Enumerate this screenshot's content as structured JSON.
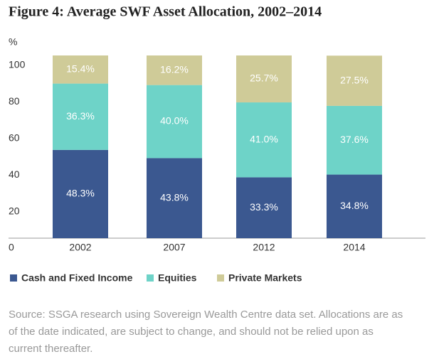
{
  "chart_data": {
    "type": "stacked_bar",
    "title": "Figure 4: Average SWF Asset Allocation, 2002–2014",
    "y_label": "%",
    "categories": [
      "2002",
      "2007",
      "2012",
      "2014"
    ],
    "series": [
      {
        "name": "Cash and Fixed Income",
        "color": "#3b5890",
        "values": [
          48.3,
          43.8,
          33.3,
          34.8
        ],
        "value_labels": [
          "48.3%",
          "43.8%",
          "33.3%",
          "34.8%"
        ]
      },
      {
        "name": "Equities",
        "color": "#6ed3c8",
        "values": [
          36.3,
          40.0,
          41.0,
          37.6
        ],
        "value_labels": [
          "36.3%",
          "40.0%",
          "41.0%",
          "37.6%"
        ]
      },
      {
        "name": "Private Markets",
        "color": "#cfcb98",
        "values": [
          15.4,
          16.2,
          25.7,
          27.5
        ],
        "value_labels": [
          "15.4%",
          "16.2%",
          "25.7%",
          "27.5%"
        ]
      }
    ],
    "ylim": [
      0,
      100
    ],
    "yticks": [
      0,
      20,
      40,
      60,
      80,
      100
    ],
    "source": [
      "Source: SSGA research using Sovereign Wealth Centre data set. Allocations are as",
      "of the date indicated, are subject to change, and should not be relied upon as",
      "current thereafter."
    ]
  }
}
